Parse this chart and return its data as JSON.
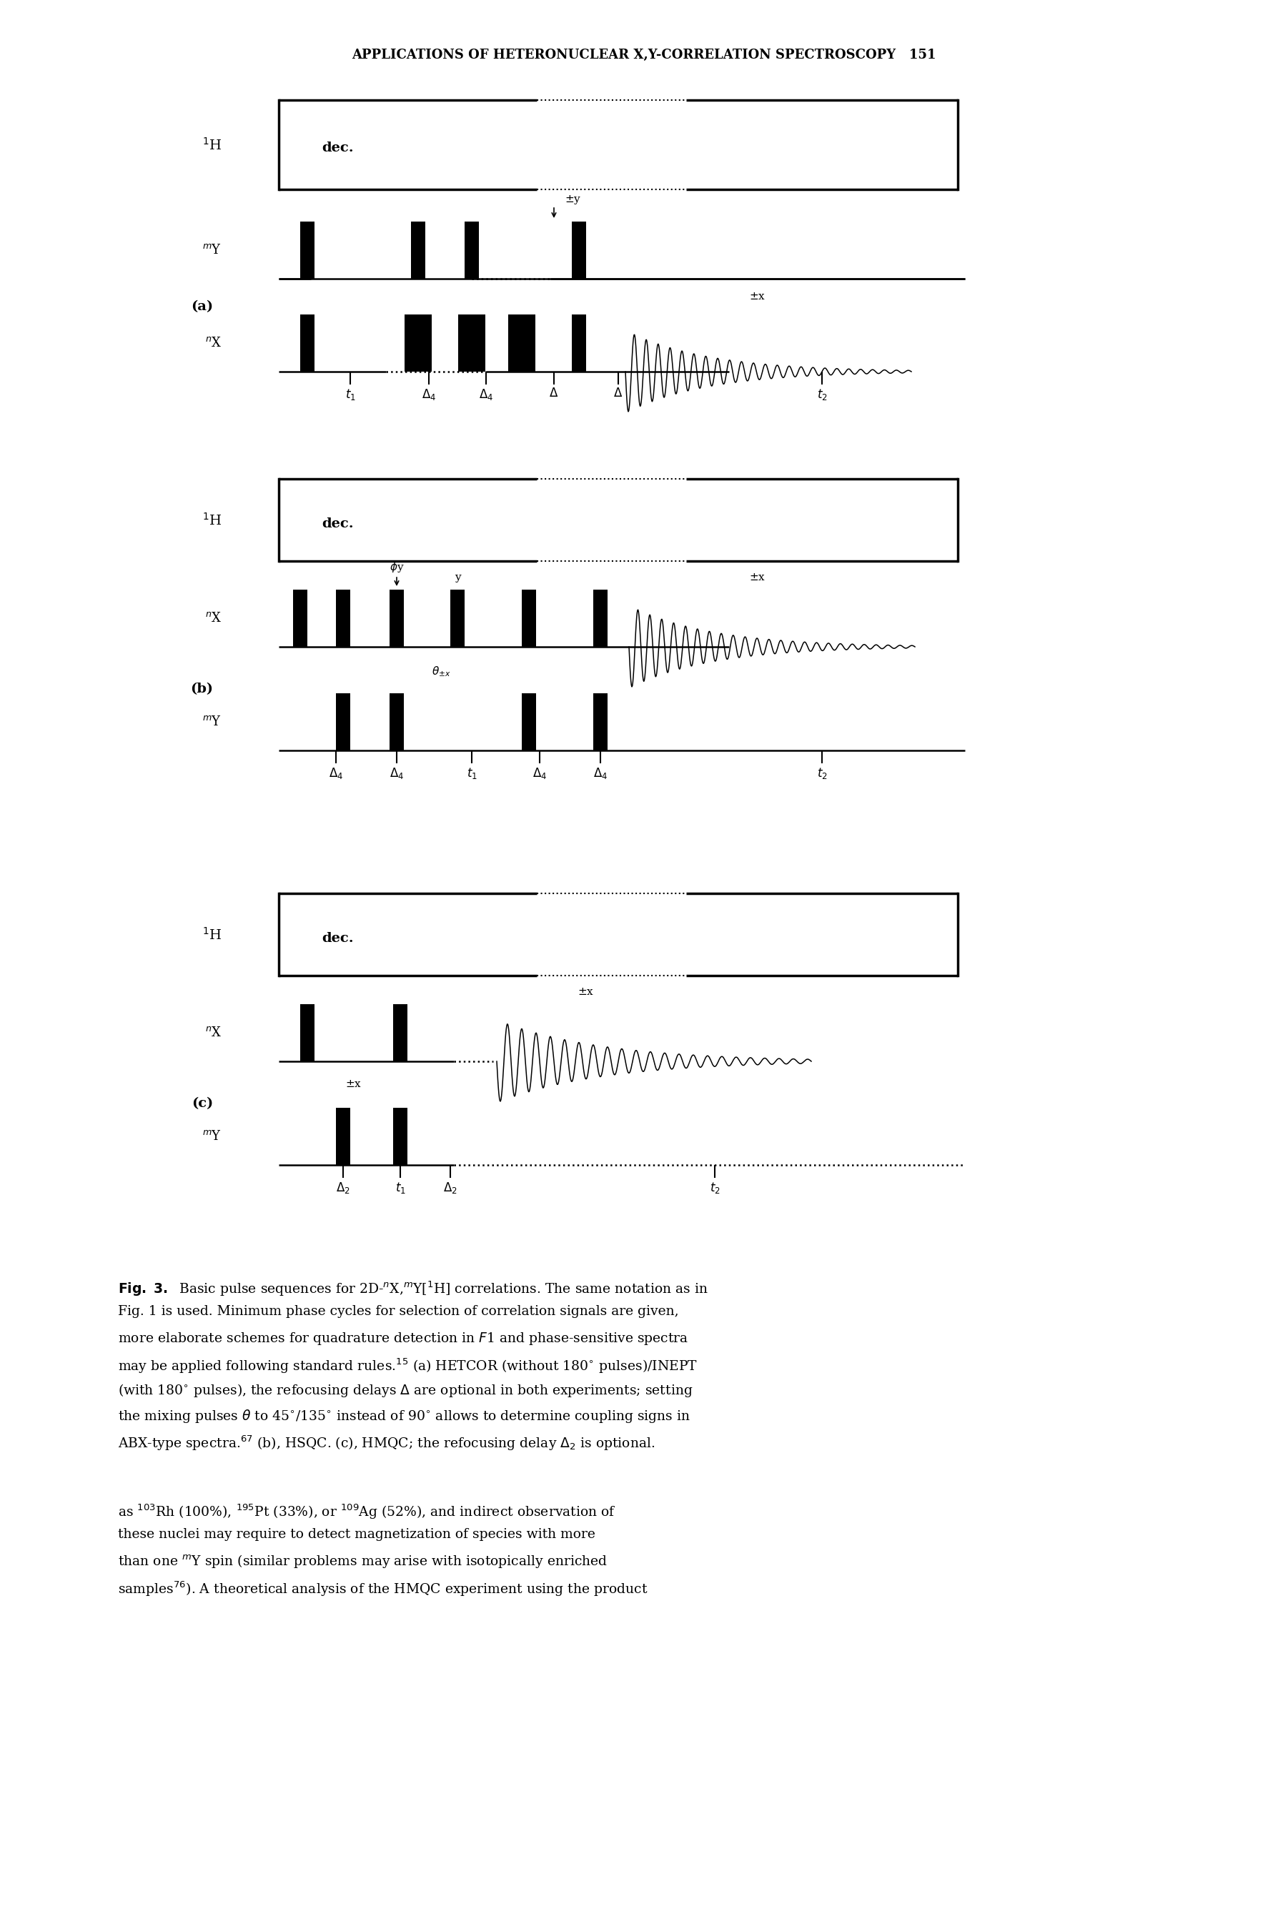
{
  "page_title": "APPLICATIONS OF HETERONUCLEAR X,Y-CORRELATION SPECTROSCOPY   151",
  "bg_color": "#ffffff",
  "panels": [
    "a",
    "b",
    "c"
  ]
}
